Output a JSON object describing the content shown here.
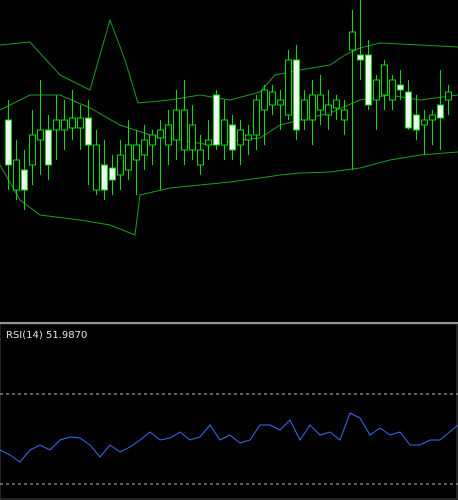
{
  "indicator": {
    "label": "RSI(14) 51.9870"
  }
}
